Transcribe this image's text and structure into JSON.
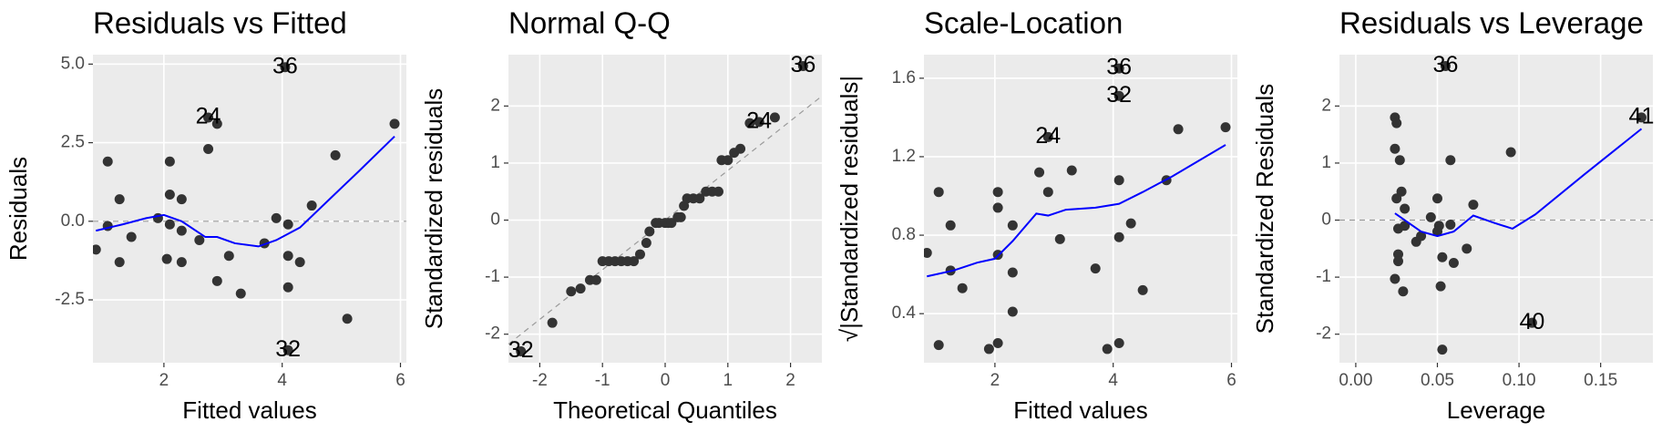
{
  "chart_data": [
    {
      "type": "scatter",
      "title": "Residuals vs Fitted",
      "xlabel": "Fitted values",
      "ylabel": "Residuals",
      "xlim": [
        0.8,
        6.1
      ],
      "ylim": [
        -4.5,
        5.3
      ],
      "xticks": [
        2,
        4,
        6
      ],
      "yticks": [
        {
          "value": -2.5,
          "label": "-2.5"
        },
        {
          "value": 0,
          "label": "0.0"
        },
        2.5,
        {
          "value": 5,
          "label": "5.0"
        }
      ],
      "grid": true,
      "hline": 0,
      "points": {
        "color": "#333333",
        "x": [
          0.85,
          1.05,
          1.05,
          1.25,
          1.25,
          1.45,
          1.9,
          2.1,
          2.1,
          2.1,
          2.05,
          2.3,
          2.3,
          2.3,
          2.6,
          2.75,
          2.75,
          2.9,
          2.9,
          3.1,
          3.3,
          3.7,
          3.9,
          4.05,
          4.1,
          4.1,
          4.1,
          4.1,
          4.3,
          4.5,
          4.9,
          5.1,
          5.9
        ],
        "y": [
          -0.9,
          -0.15,
          1.9,
          0.7,
          -1.3,
          -0.5,
          0.1,
          1.9,
          0.85,
          -0.1,
          -1.2,
          0.7,
          -0.3,
          -1.3,
          -0.6,
          2.3,
          3.3,
          3.1,
          -1.9,
          -1.1,
          -2.3,
          -0.7,
          0.1,
          4.9,
          -0.1,
          -1.1,
          -2.1,
          -4.1,
          -1.3,
          0.5,
          2.1,
          -3.1,
          3.1
        ],
        "labels": [
          null,
          null,
          null,
          null,
          null,
          null,
          null,
          null,
          null,
          null,
          null,
          null,
          null,
          null,
          null,
          null,
          "24",
          null,
          null,
          null,
          null,
          null,
          null,
          "36",
          null,
          null,
          null,
          "32",
          null,
          null,
          null,
          null,
          null
        ]
      },
      "smooth": {
        "color": "#0000ff",
        "x": [
          0.85,
          1.3,
          1.7,
          2.0,
          2.3,
          2.7,
          2.9,
          3.2,
          3.6,
          3.9,
          4.3,
          4.8,
          5.3,
          5.9
        ],
        "y": [
          -0.3,
          -0.1,
          0.1,
          0.2,
          0,
          -0.5,
          -0.5,
          -0.7,
          -0.8,
          -0.6,
          -0.2,
          0.7,
          1.6,
          2.7
        ]
      }
    },
    {
      "type": "scatter",
      "title": "Normal Q-Q",
      "xlabel": "Theoretical Quantiles",
      "ylabel": "Standardized residuals",
      "xlim": [
        -2.5,
        2.5
      ],
      "ylim": [
        -2.5,
        2.9
      ],
      "xticks": [
        -2,
        -1,
        0,
        1,
        2
      ],
      "yticks": [
        -2,
        -1,
        0,
        1,
        2
      ],
      "grid": true,
      "abline": {
        "intercept": 0,
        "slope": 0.87
      },
      "points": {
        "color": "#333333",
        "x": [
          -2.3,
          -1.8,
          -1.5,
          -1.35,
          -1.2,
          -1.1,
          -1,
          -0.9,
          -0.8,
          -0.7,
          -0.6,
          -0.5,
          -0.4,
          -0.3,
          -0.25,
          -0.15,
          -0.1,
          0,
          0.05,
          0.1,
          0.2,
          0.25,
          0.3,
          0.35,
          0.45,
          0.55,
          0.65,
          0.75,
          0.85,
          0.9,
          1.0,
          1.1,
          1.2,
          1.35,
          1.5,
          1.75,
          2.2
        ],
        "y": [
          -2.3,
          -1.8,
          -1.25,
          -1.2,
          -1.05,
          -1.05,
          -0.72,
          -0.72,
          -0.72,
          -0.72,
          -0.72,
          -0.72,
          -0.6,
          -0.4,
          -0.2,
          -0.05,
          -0.05,
          -0.05,
          -0.05,
          -0.05,
          0.05,
          0.05,
          0.25,
          0.38,
          0.38,
          0.38,
          0.5,
          0.5,
          0.5,
          1.05,
          1.05,
          1.18,
          1.25,
          1.7,
          1.72,
          1.8,
          2.7
        ],
        "labels": [
          "32",
          null,
          null,
          null,
          null,
          null,
          null,
          null,
          null,
          null,
          null,
          null,
          null,
          null,
          null,
          null,
          null,
          null,
          null,
          null,
          null,
          null,
          null,
          null,
          null,
          null,
          null,
          null,
          null,
          null,
          null,
          null,
          null,
          null,
          "24",
          null,
          "36"
        ]
      }
    },
    {
      "type": "scatter",
      "title": "Scale-Location",
      "xlabel": "Fitted values",
      "ylabel": "√|Standardized residuals|",
      "xlim": [
        0.8,
        6.1
      ],
      "ylim": [
        0.15,
        1.72
      ],
      "xticks": [
        2,
        4,
        6
      ],
      "yticks": [
        0.4,
        0.8,
        1.2,
        1.6
      ],
      "grid": true,
      "points": {
        "color": "#333333",
        "x": [
          0.85,
          1.05,
          1.05,
          1.25,
          1.25,
          1.45,
          1.9,
          2.05,
          2.05,
          2.05,
          2.3,
          2.3,
          2.3,
          2.75,
          2.9,
          2.9,
          3.1,
          3.3,
          3.7,
          3.9,
          4.1,
          4.1,
          4.1,
          4.1,
          4.1,
          4.3,
          4.5,
          4.9,
          5.1,
          5.9,
          2.05
        ],
        "y": [
          0.71,
          0.24,
          1.02,
          0.85,
          0.62,
          0.53,
          0.22,
          1.02,
          0.94,
          0.25,
          0.85,
          0.41,
          0.61,
          1.12,
          1.3,
          1.02,
          0.78,
          1.13,
          0.63,
          0.22,
          1.65,
          1.51,
          1.08,
          0.79,
          0.25,
          0.86,
          0.52,
          1.08,
          1.34,
          1.35,
          0.7
        ],
        "labels": [
          null,
          null,
          null,
          null,
          null,
          null,
          null,
          null,
          null,
          null,
          null,
          null,
          null,
          null,
          "24",
          null,
          null,
          null,
          null,
          null,
          "36",
          "32",
          null,
          null,
          null,
          null,
          null,
          null,
          null,
          null,
          null
        ]
      },
      "smooth": {
        "color": "#0000ff",
        "x": [
          0.85,
          1.3,
          1.7,
          2.0,
          2.3,
          2.7,
          2.9,
          3.2,
          3.7,
          4.1,
          4.5,
          5.0,
          5.9
        ],
        "y": [
          0.59,
          0.62,
          0.66,
          0.68,
          0.77,
          0.91,
          0.9,
          0.93,
          0.94,
          0.96,
          1.02,
          1.1,
          1.26
        ]
      }
    },
    {
      "type": "scatter",
      "title": "Residuals vs Leverage",
      "xlabel": "Leverage",
      "ylabel": "Standardized Residuals",
      "xlim": [
        -0.01,
        0.182
      ],
      "ylim": [
        -2.5,
        2.9
      ],
      "xticks": [
        {
          "value": 0,
          "label": "0.00"
        },
        0.05,
        {
          "value": 0.1,
          "label": "0.10"
        },
        0.15
      ],
      "yticks": [
        -2,
        -1,
        0,
        1,
        2
      ],
      "grid": true,
      "hline": 0,
      "points": {
        "color": "#333333",
        "x": [
          0.024,
          0.025,
          0.024,
          0.027,
          0.028,
          0.025,
          0.026,
          0.026,
          0.026,
          0.024,
          0.029,
          0.03,
          0.03,
          0.037,
          0.04,
          0.046,
          0.05,
          0.051,
          0.052,
          0.053,
          0.053,
          0.055,
          0.058,
          0.058,
          0.06,
          0.068,
          0.072,
          0.095,
          0.108,
          0.175,
          0.05
        ],
        "y": [
          1.8,
          1.7,
          1.25,
          1.05,
          0.5,
          0.38,
          -0.15,
          -0.6,
          -0.72,
          -1.03,
          -1.25,
          0.2,
          -0.1,
          -0.38,
          -0.28,
          0.05,
          0.38,
          -0.1,
          -1.16,
          -0.65,
          -2.27,
          2.7,
          -0.08,
          1.05,
          -0.75,
          -0.5,
          0.27,
          1.19,
          -1.8,
          1.8,
          -0.2
        ],
        "labels": [
          null,
          null,
          null,
          null,
          null,
          null,
          null,
          null,
          null,
          null,
          null,
          null,
          null,
          null,
          null,
          null,
          null,
          null,
          null,
          null,
          null,
          "36",
          null,
          null,
          null,
          null,
          null,
          null,
          "40",
          "41",
          null
        ]
      },
      "smooth": {
        "color": "#0000ff",
        "x": [
          0.024,
          0.03,
          0.04,
          0.05,
          0.06,
          0.072,
          0.085,
          0.096,
          0.11,
          0.14,
          0.175
        ],
        "y": [
          0.12,
          0,
          -0.2,
          -0.28,
          -0.2,
          0.08,
          -0.05,
          -0.15,
          0.1,
          0.8,
          1.6
        ]
      }
    }
  ]
}
